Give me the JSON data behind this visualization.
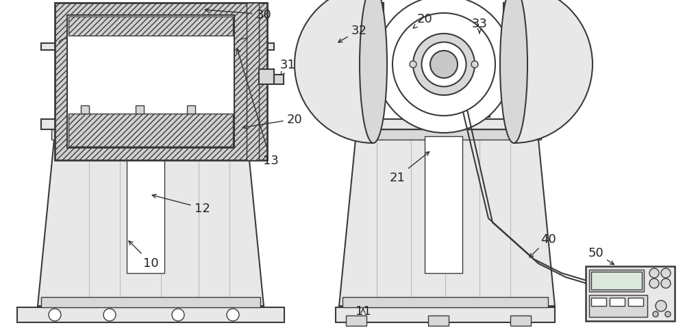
{
  "bg_color": "#ffffff",
  "line_color": "#3a3a3a",
  "line_width": 1.5,
  "thin_lw": 1.0,
  "figsize": [
    10.0,
    4.89
  ],
  "dpi": 100,
  "label_fontsize": 12,
  "label_color": "#222222",
  "arrow_color": "#333333",
  "hatch_fc": "#d0d0d0",
  "box_fc": "#f2f2f2",
  "white": "#ffffff",
  "gray1": "#e8e8e8",
  "gray2": "#d8d8d8",
  "gray3": "#c8c8c8"
}
